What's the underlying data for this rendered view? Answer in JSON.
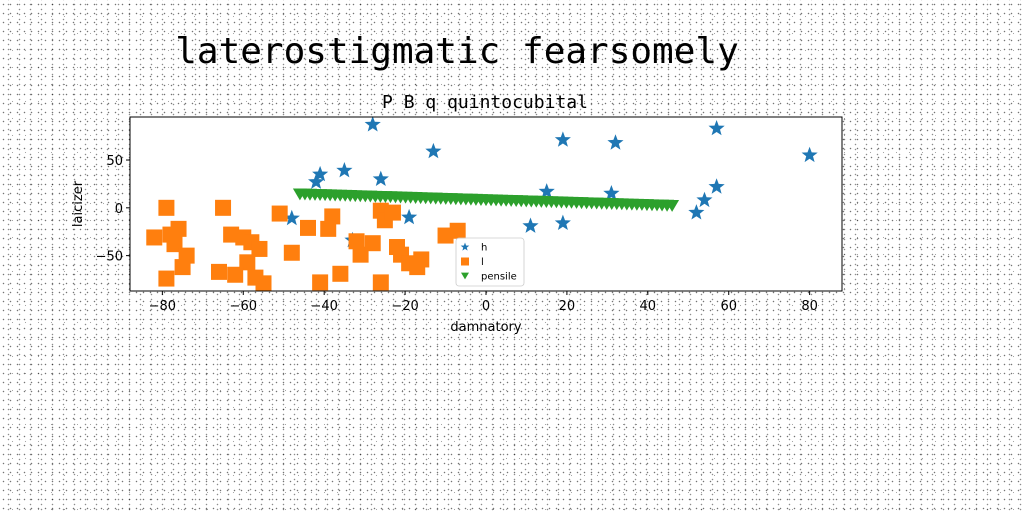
{
  "chart_data": {
    "type": "scatter",
    "title": "laterostigmatic fearsomely",
    "subtitle": "P B q quintocubital",
    "xlabel": "damnatory",
    "ylabel": "laicizer",
    "xlim": [
      -88,
      88
    ],
    "ylim": [
      -87,
      95
    ],
    "xticks": [
      -80,
      -60,
      -40,
      -20,
      0,
      20,
      40,
      60,
      80
    ],
    "yticks": [
      -50,
      0,
      50
    ],
    "grid": false,
    "legend_position": "lower-center",
    "series": [
      {
        "name": "h",
        "marker": "star",
        "color": "#1f77b4",
        "points": [
          [
            -28,
            87
          ],
          [
            -13,
            59
          ],
          [
            19,
            71
          ],
          [
            32,
            68
          ],
          [
            57,
            83
          ],
          [
            80,
            55
          ],
          [
            -35,
            39
          ],
          [
            -41,
            35
          ],
          [
            -42,
            27
          ],
          [
            -26,
            30
          ],
          [
            15,
            17
          ],
          [
            31,
            15
          ],
          [
            57,
            22
          ],
          [
            54,
            8
          ],
          [
            52,
            -5
          ],
          [
            -48,
            -11
          ],
          [
            -19,
            -10
          ],
          [
            11,
            -19
          ],
          [
            19,
            -16
          ],
          [
            -33,
            -34
          ]
        ]
      },
      {
        "name": "l",
        "marker": "square",
        "color": "#ff7f0e",
        "points": [
          [
            -79,
            0
          ],
          [
            -82,
            -31
          ],
          [
            -78,
            -28
          ],
          [
            -76,
            -22
          ],
          [
            -77,
            -38
          ],
          [
            -74,
            -50
          ],
          [
            -75,
            -62
          ],
          [
            -79,
            -74
          ],
          [
            -65,
            0
          ],
          [
            -63,
            -28
          ],
          [
            -60,
            -31
          ],
          [
            -58,
            -36
          ],
          [
            -56,
            -43
          ],
          [
            -59,
            -57
          ],
          [
            -62,
            -70
          ],
          [
            -66,
            -67
          ],
          [
            -57,
            -73
          ],
          [
            -55,
            -79
          ],
          [
            -51,
            -6
          ],
          [
            -48,
            -47
          ],
          [
            -44,
            -21
          ],
          [
            -41,
            -78
          ],
          [
            -38,
            -9
          ],
          [
            -39,
            -22
          ],
          [
            -36,
            -69
          ],
          [
            -32,
            -35
          ],
          [
            -31,
            -49
          ],
          [
            -28,
            -37
          ],
          [
            -26,
            -3
          ],
          [
            -25,
            -13
          ],
          [
            -23,
            -5
          ],
          [
            -22,
            -41
          ],
          [
            -21,
            -49
          ],
          [
            -19,
            -58
          ],
          [
            -17,
            -62
          ],
          [
            -16,
            -54
          ],
          [
            -26,
            -78
          ],
          [
            -10,
            -29
          ],
          [
            -7,
            -24
          ]
        ]
      },
      {
        "name": "pensile",
        "marker": "triangle-down",
        "color": "#2ca02c",
        "x_start": -46,
        "x_end": 46,
        "y_start": 14,
        "y_end": 2,
        "count": 75
      }
    ]
  }
}
